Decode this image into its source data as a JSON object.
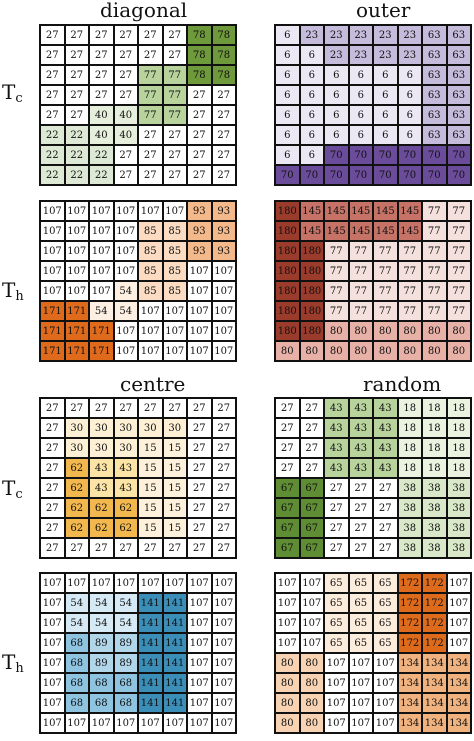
{
  "titles": {
    "diagonal": "diagonal",
    "outer": "outer",
    "centre": "centre",
    "random": "random"
  },
  "row_labels": [
    {
      "main": "T",
      "sub": "c"
    },
    {
      "main": "T",
      "sub": "h"
    },
    {
      "main": "T",
      "sub": "c"
    },
    {
      "main": "T",
      "sub": "h"
    }
  ],
  "grids": [
    {
      "id": "diagonal-tc",
      "values": [
        [
          27,
          27,
          27,
          27,
          27,
          27,
          78,
          78
        ],
        [
          27,
          27,
          27,
          27,
          27,
          27,
          78,
          78
        ],
        [
          27,
          27,
          27,
          27,
          77,
          77,
          78,
          78
        ],
        [
          27,
          27,
          27,
          27,
          77,
          77,
          27,
          27
        ],
        [
          27,
          27,
          40,
          40,
          77,
          77,
          27,
          27
        ],
        [
          22,
          22,
          40,
          40,
          27,
          27,
          27,
          27
        ],
        [
          22,
          22,
          22,
          27,
          27,
          27,
          27,
          27
        ],
        [
          22,
          22,
          22,
          27,
          27,
          27,
          27,
          27
        ]
      ],
      "colors": {
        "78": "#6f9a3c",
        "77": "#b8d49c",
        "40": "#e5efdb",
        "22": "#dde9d4"
      }
    },
    {
      "id": "outer-tc",
      "values": [
        [
          6,
          23,
          23,
          23,
          23,
          23,
          63,
          63
        ],
        [
          6,
          6,
          23,
          23,
          23,
          23,
          63,
          63
        ],
        [
          6,
          6,
          6,
          6,
          6,
          6,
          63,
          63
        ],
        [
          6,
          6,
          6,
          6,
          6,
          6,
          63,
          63
        ],
        [
          6,
          6,
          6,
          6,
          6,
          6,
          63,
          63
        ],
        [
          6,
          6,
          6,
          6,
          6,
          6,
          63,
          63
        ],
        [
          6,
          6,
          70,
          70,
          70,
          70,
          70,
          70
        ],
        [
          70,
          70,
          70,
          70,
          70,
          70,
          70,
          70
        ]
      ],
      "colors": {
        "6": "#ebe8f3",
        "23": "#c5bcdc",
        "63": "#c5bcdc",
        "70": "#6b4c9a"
      }
    },
    {
      "id": "diagonal-th",
      "values": [
        [
          107,
          107,
          107,
          107,
          107,
          107,
          93,
          93
        ],
        [
          107,
          107,
          107,
          107,
          85,
          85,
          93,
          93
        ],
        [
          107,
          107,
          107,
          107,
          85,
          85,
          93,
          93
        ],
        [
          107,
          107,
          107,
          107,
          85,
          85,
          107,
          107
        ],
        [
          107,
          107,
          107,
          54,
          85,
          85,
          107,
          107
        ],
        [
          171,
          171,
          54,
          54,
          107,
          107,
          107,
          107
        ],
        [
          171,
          171,
          171,
          107,
          107,
          107,
          107,
          107
        ],
        [
          171,
          171,
          171,
          107,
          107,
          107,
          107,
          107
        ]
      ],
      "colors": {
        "93": "#f3b98b",
        "85": "#fbdcc2",
        "54": "#fdefe2",
        "171": "#df6a1c"
      }
    },
    {
      "id": "outer-th",
      "values": [
        [
          180,
          145,
          145,
          145,
          145,
          145,
          77,
          77
        ],
        [
          180,
          145,
          145,
          145,
          145,
          145,
          77,
          77
        ],
        [
          180,
          180,
          77,
          77,
          77,
          77,
          77,
          77
        ],
        [
          180,
          180,
          77,
          77,
          77,
          77,
          77,
          77
        ],
        [
          180,
          180,
          77,
          77,
          77,
          77,
          77,
          77
        ],
        [
          180,
          180,
          77,
          77,
          77,
          77,
          77,
          77
        ],
        [
          180,
          180,
          80,
          80,
          80,
          80,
          80,
          80
        ],
        [
          80,
          80,
          80,
          80,
          80,
          80,
          80,
          80
        ]
      ],
      "colors": {
        "180": "#9b3b2c",
        "145": "#c67266",
        "77": "#f4e1dd",
        "80": "#e8b1a8"
      }
    },
    {
      "id": "centre-tc",
      "values": [
        [
          27,
          27,
          27,
          27,
          27,
          27,
          27,
          27
        ],
        [
          27,
          30,
          30,
          30,
          30,
          30,
          27,
          27
        ],
        [
          27,
          30,
          30,
          30,
          15,
          15,
          27,
          27
        ],
        [
          27,
          62,
          43,
          43,
          15,
          15,
          27,
          27
        ],
        [
          27,
          62,
          43,
          43,
          15,
          15,
          27,
          27
        ],
        [
          27,
          62,
          62,
          62,
          15,
          15,
          27,
          27
        ],
        [
          27,
          62,
          62,
          62,
          15,
          15,
          27,
          27
        ],
        [
          27,
          27,
          27,
          27,
          27,
          27,
          27,
          27
        ]
      ],
      "colors": {
        "30": "#fdf0d5",
        "15": "#fdf1dc",
        "43": "#fbe4a5",
        "62": "#f2b84d"
      }
    },
    {
      "id": "random-tc",
      "values": [
        [
          27,
          27,
          43,
          43,
          43,
          18,
          18,
          18
        ],
        [
          27,
          27,
          43,
          43,
          43,
          18,
          18,
          18
        ],
        [
          27,
          27,
          43,
          43,
          43,
          18,
          18,
          18
        ],
        [
          27,
          27,
          43,
          43,
          43,
          18,
          18,
          18
        ],
        [
          67,
          67,
          27,
          27,
          27,
          38,
          38,
          38
        ],
        [
          67,
          67,
          27,
          27,
          27,
          38,
          38,
          38
        ],
        [
          67,
          67,
          27,
          27,
          27,
          38,
          38,
          38
        ],
        [
          67,
          67,
          27,
          27,
          27,
          38,
          38,
          38
        ]
      ],
      "colors": {
        "43": "#b8d49c",
        "18": "#eaf2e0",
        "38": "#d8e8c8",
        "67": "#5f8d33"
      }
    },
    {
      "id": "centre-th",
      "values": [
        [
          107,
          107,
          107,
          107,
          107,
          107,
          107,
          107
        ],
        [
          107,
          54,
          54,
          54,
          141,
          141,
          107,
          107
        ],
        [
          107,
          54,
          54,
          54,
          141,
          141,
          107,
          107
        ],
        [
          107,
          68,
          89,
          89,
          141,
          141,
          107,
          107
        ],
        [
          107,
          68,
          89,
          89,
          141,
          141,
          107,
          107
        ],
        [
          107,
          68,
          68,
          68,
          141,
          141,
          107,
          107
        ],
        [
          107,
          68,
          68,
          68,
          141,
          141,
          107,
          107
        ],
        [
          107,
          107,
          107,
          107,
          107,
          107,
          107,
          107
        ]
      ],
      "colors": {
        "54": "#d6eaf5",
        "89": "#b1d6ea",
        "68": "#8ec4e0",
        "141": "#3a8eb8"
      }
    },
    {
      "id": "random-th",
      "values": [
        [
          107,
          107,
          65,
          65,
          65,
          172,
          172,
          107
        ],
        [
          107,
          107,
          65,
          65,
          65,
          172,
          172,
          107
        ],
        [
          107,
          107,
          65,
          65,
          65,
          172,
          172,
          107
        ],
        [
          107,
          107,
          65,
          65,
          65,
          172,
          172,
          107
        ],
        [
          80,
          80,
          107,
          107,
          107,
          134,
          134,
          134
        ],
        [
          80,
          80,
          107,
          107,
          107,
          134,
          134,
          134
        ],
        [
          80,
          80,
          107,
          107,
          107,
          134,
          134,
          134
        ],
        [
          80,
          80,
          107,
          107,
          107,
          134,
          134,
          134
        ]
      ],
      "colors": {
        "65": "#fcecdc",
        "172": "#de6a1c",
        "80": "#f7d3b3",
        "134": "#f0b27e"
      }
    }
  ]
}
